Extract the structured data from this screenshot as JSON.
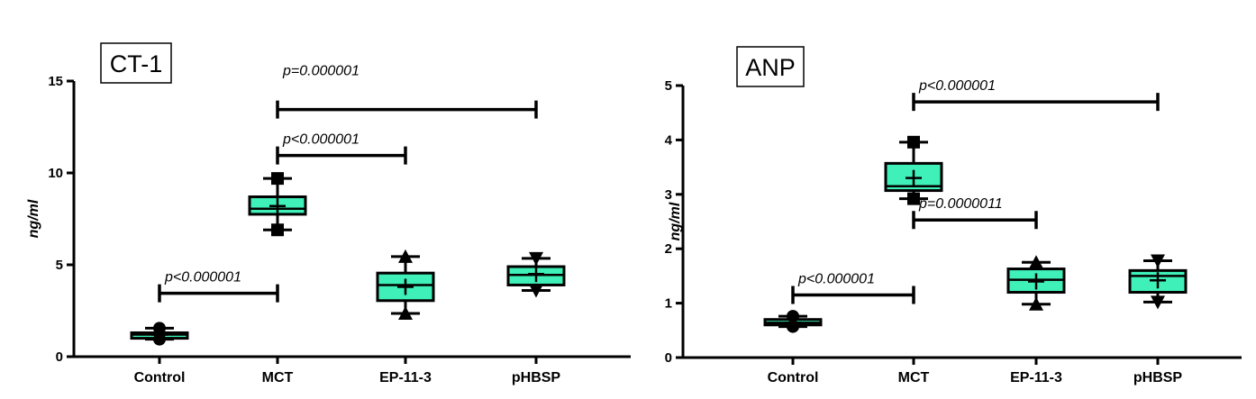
{
  "colors": {
    "box_fill": "#3ff0b8",
    "ink": "#000000",
    "background": "#ffffff"
  },
  "chart_data": [
    {
      "type": "box",
      "title": "CT-1",
      "ylabel": "ng/ml",
      "ylim": [
        0,
        15
      ],
      "yticks": [
        0,
        5,
        10,
        15
      ],
      "categories": [
        "Control",
        "MCT",
        "EP-11-3",
        "pHBSP"
      ],
      "boxes": [
        {
          "category": "Control",
          "min": 0.95,
          "q1": 1.0,
          "median": 1.2,
          "q3": 1.3,
          "max": 1.55,
          "mean": 1.2,
          "marker": "circle"
        },
        {
          "category": "MCT",
          "min": 6.9,
          "q1": 7.75,
          "median": 8.05,
          "q3": 8.7,
          "max": 9.7,
          "mean": 8.2,
          "marker": "square"
        },
        {
          "category": "EP-11-3",
          "min": 2.35,
          "q1": 3.05,
          "median": 3.9,
          "q3": 4.55,
          "max": 5.45,
          "mean": 3.8,
          "marker": "triangle-up"
        },
        {
          "category": "pHBSP",
          "min": 3.6,
          "q1": 3.9,
          "median": 4.45,
          "q3": 4.9,
          "max": 5.35,
          "mean": 4.5,
          "marker": "triangle-down"
        }
      ],
      "comparisons": [
        {
          "from": "Control",
          "to": "MCT",
          "y": 3.45,
          "label": "p<0.000001"
        },
        {
          "from": "MCT",
          "to": "EP-11-3",
          "y": 10.95,
          "label": "p<0.000001"
        },
        {
          "from": "MCT",
          "to": "pHBSP",
          "y": 13.45,
          "label": "p=0.000001",
          "label_above": true
        }
      ]
    },
    {
      "type": "box",
      "title": "ANP",
      "ylabel": "ng/ml",
      "ylim": [
        0,
        5
      ],
      "yticks": [
        0,
        1,
        2,
        3,
        4,
        5
      ],
      "categories": [
        "Control",
        "MCT",
        "EP-11-3",
        "pHBSP"
      ],
      "boxes": [
        {
          "category": "Control",
          "min": 0.57,
          "q1": 0.6,
          "median": 0.64,
          "q3": 0.7,
          "max": 0.76,
          "mean": 0.64,
          "marker": "circle"
        },
        {
          "category": "MCT",
          "min": 2.92,
          "q1": 3.07,
          "median": 3.15,
          "q3": 3.57,
          "max": 3.96,
          "mean": 3.3,
          "marker": "square"
        },
        {
          "category": "EP-11-3",
          "min": 0.98,
          "q1": 1.2,
          "median": 1.43,
          "q3": 1.63,
          "max": 1.75,
          "mean": 1.4,
          "marker": "triangle-up"
        },
        {
          "category": "pHBSP",
          "min": 1.02,
          "q1": 1.2,
          "median": 1.5,
          "q3": 1.6,
          "max": 1.78,
          "mean": 1.42,
          "marker": "triangle-down"
        }
      ],
      "comparisons": [
        {
          "from": "Control",
          "to": "MCT",
          "y": 1.15,
          "label": "p<0.000001"
        },
        {
          "from": "MCT",
          "to": "EP-11-3",
          "y": 2.53,
          "label": "p=0.0000011"
        },
        {
          "from": "MCT",
          "to": "pHBSP",
          "y": 4.7,
          "label": "p<0.000001"
        }
      ]
    }
  ]
}
